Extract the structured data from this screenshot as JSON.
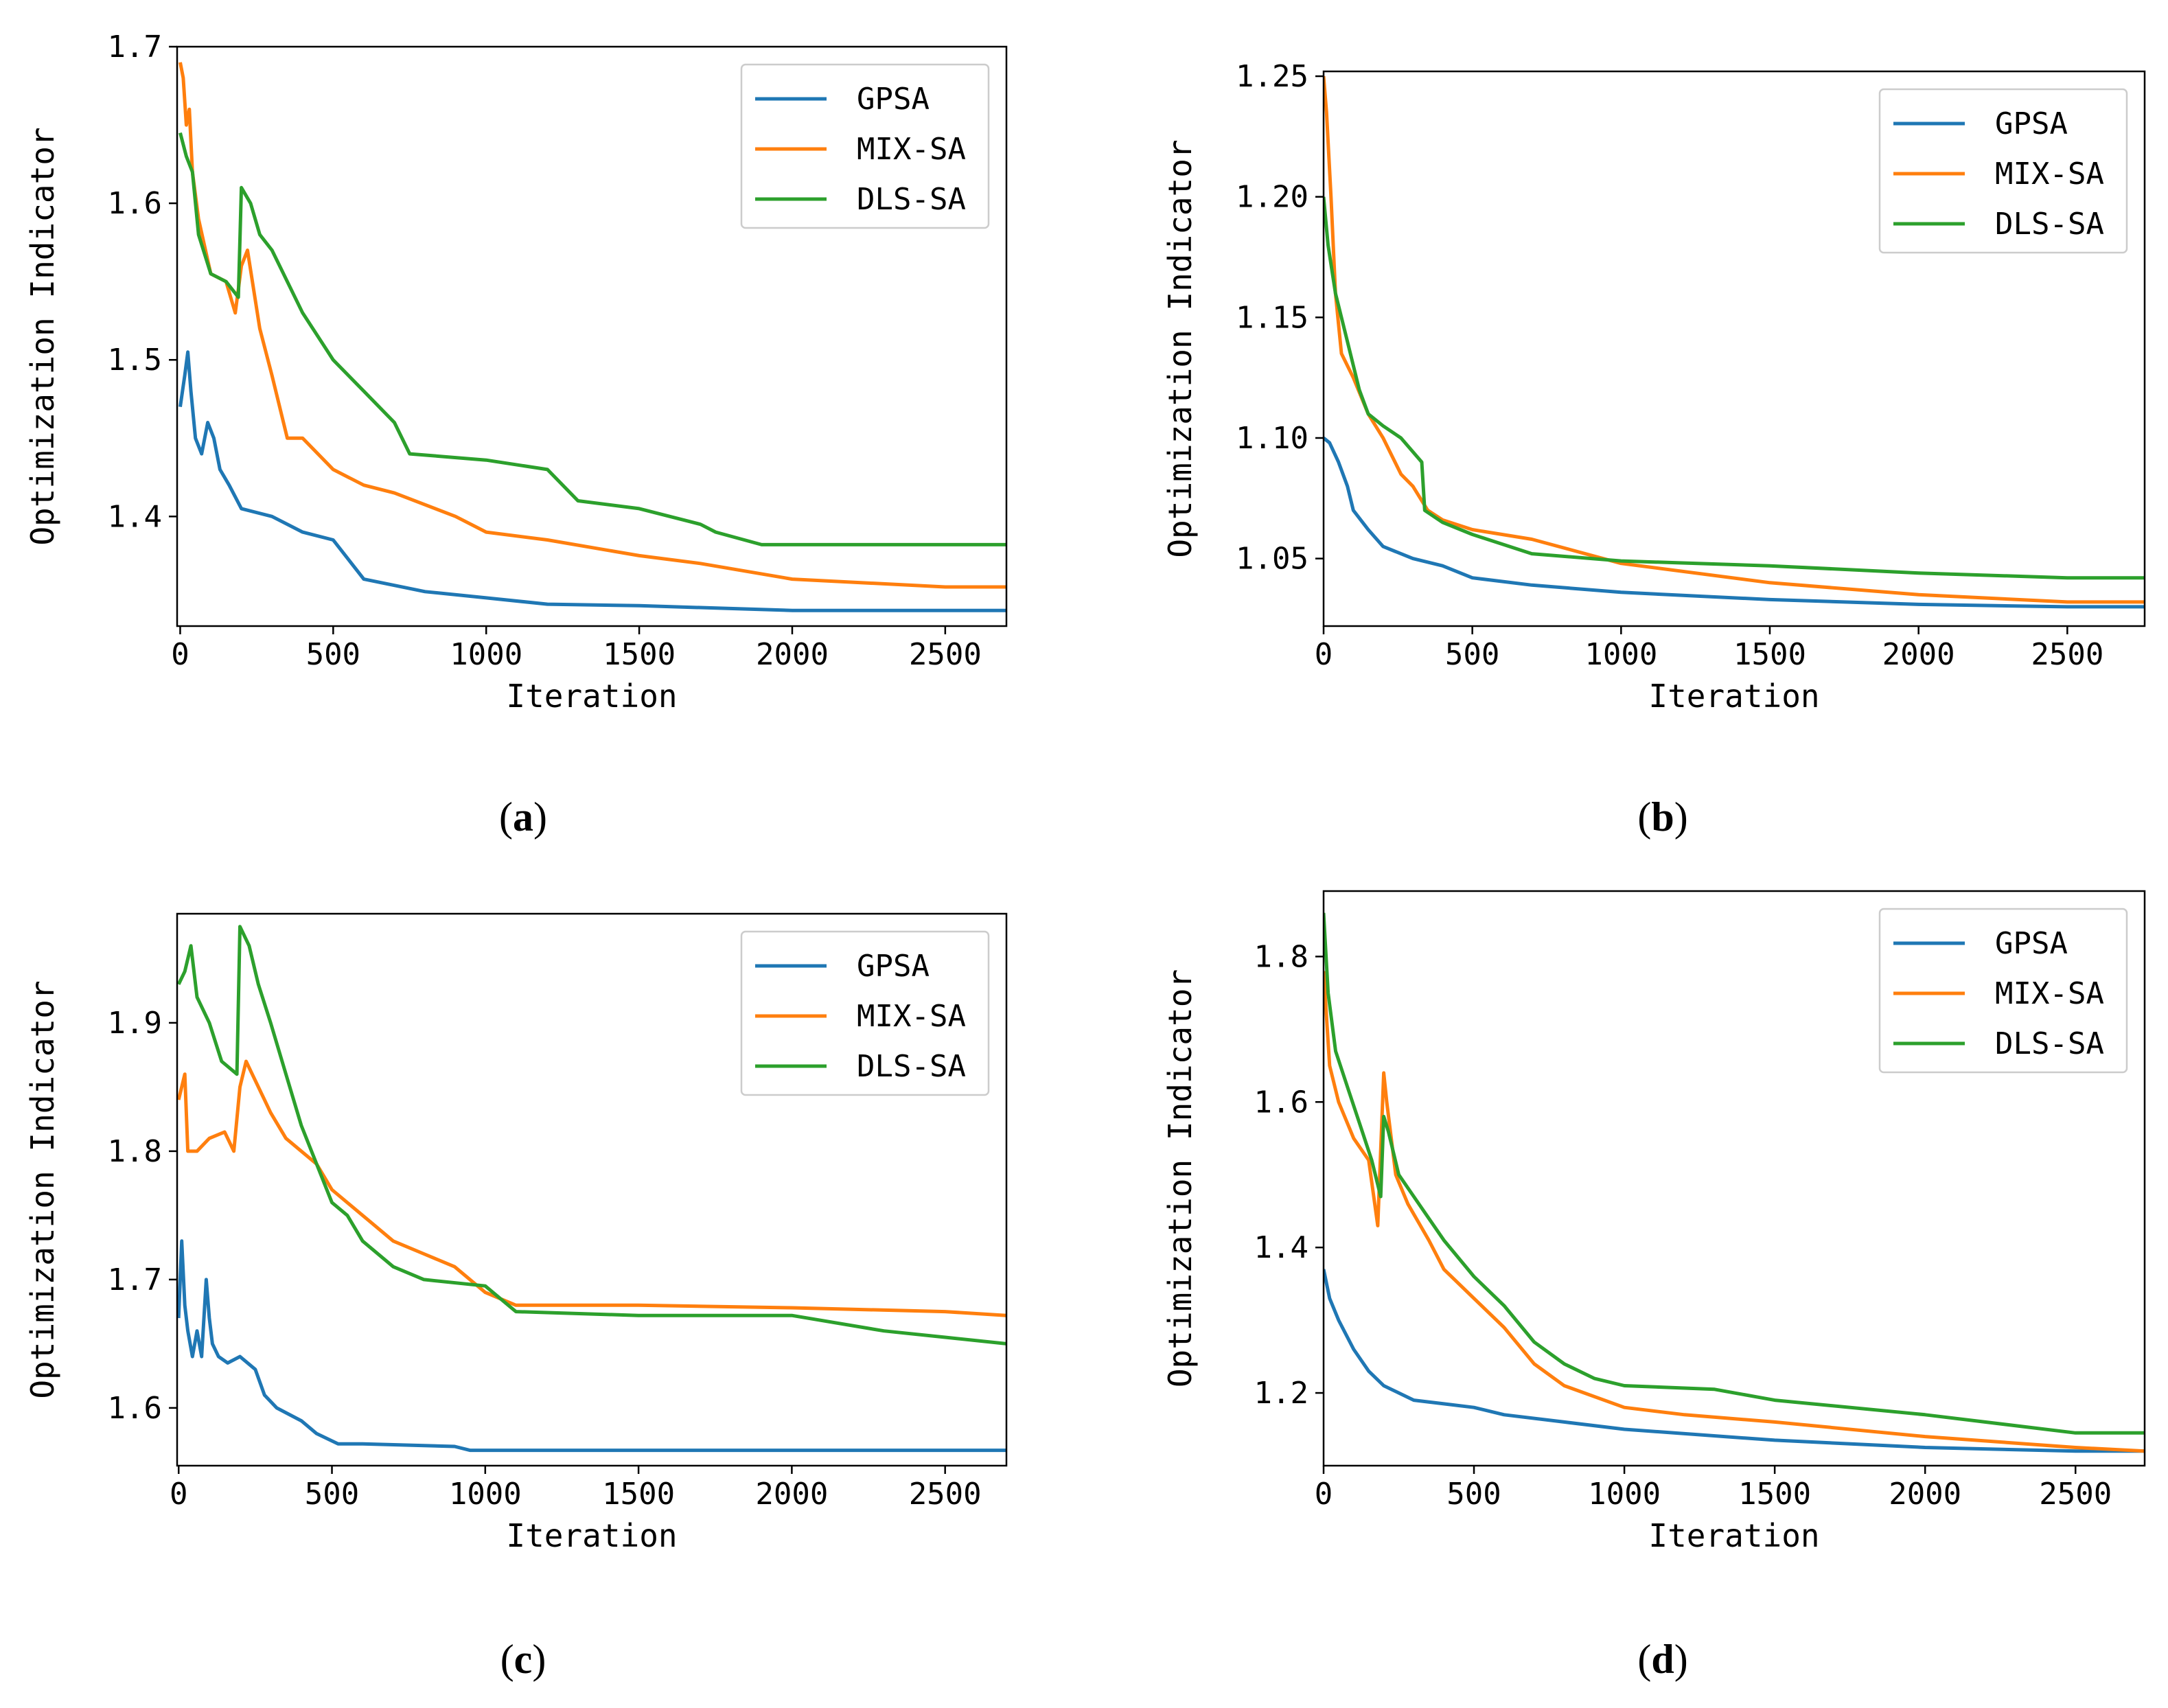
{
  "figure": {
    "colors": {
      "GPSA": "#1f77b4",
      "MIX-SA": "#ff7f0e",
      "DLS-SA": "#2ca02c"
    }
  },
  "chart_data": [
    {
      "type": "line",
      "caption": "(a)",
      "caption_open": "(",
      "caption_letter": "a",
      "caption_close": ")",
      "xlabel": "Iteration",
      "ylabel": "Optimization Indicator",
      "xlim": [
        -10,
        2700
      ],
      "ylim": [
        1.33,
        1.7
      ],
      "xticks": [
        0,
        500,
        1000,
        1500,
        2000,
        2500
      ],
      "xtick_labels": [
        "0",
        "500",
        "1000",
        "1500",
        "2000",
        "2500"
      ],
      "yticks": [
        1.4,
        1.5,
        1.6,
        1.7
      ],
      "ytick_labels": [
        "1.4",
        "1.5",
        "1.6",
        "1.7"
      ],
      "legend": [
        "GPSA",
        "MIX-SA",
        "DLS-SA"
      ],
      "legend_position": "top-right",
      "series": [
        {
          "name": "GPSA",
          "x": [
            0,
            15,
            25,
            35,
            50,
            70,
            90,
            110,
            130,
            160,
            200,
            300,
            400,
            500,
            600,
            800,
            1000,
            1200,
            1500,
            2000,
            2500,
            2700
          ],
          "y": [
            1.47,
            1.49,
            1.505,
            1.48,
            1.45,
            1.44,
            1.46,
            1.45,
            1.43,
            1.42,
            1.405,
            1.4,
            1.39,
            1.385,
            1.36,
            1.352,
            1.348,
            1.344,
            1.343,
            1.34,
            1.34,
            1.34
          ]
        },
        {
          "name": "MIX-SA",
          "x": [
            0,
            10,
            20,
            30,
            40,
            60,
            100,
            150,
            180,
            200,
            220,
            260,
            300,
            350,
            400,
            500,
            600,
            700,
            900,
            1000,
            1200,
            1500,
            1700,
            2000,
            2500,
            2700
          ],
          "y": [
            1.69,
            1.68,
            1.65,
            1.66,
            1.62,
            1.59,
            1.555,
            1.55,
            1.53,
            1.56,
            1.57,
            1.52,
            1.49,
            1.45,
            1.45,
            1.43,
            1.42,
            1.415,
            1.4,
            1.39,
            1.385,
            1.375,
            1.37,
            1.36,
            1.355,
            1.355
          ]
        },
        {
          "name": "DLS-SA",
          "x": [
            0,
            20,
            40,
            60,
            100,
            150,
            190,
            200,
            230,
            260,
            300,
            400,
            500,
            600,
            700,
            750,
            1000,
            1200,
            1300,
            1500,
            1700,
            1750,
            1900,
            2500,
            2700
          ],
          "y": [
            1.645,
            1.63,
            1.62,
            1.58,
            1.555,
            1.55,
            1.54,
            1.61,
            1.6,
            1.58,
            1.57,
            1.53,
            1.5,
            1.48,
            1.46,
            1.44,
            1.436,
            1.43,
            1.41,
            1.405,
            1.395,
            1.39,
            1.382,
            1.382,
            1.382
          ]
        }
      ]
    },
    {
      "type": "line",
      "caption": "(b)",
      "caption_open": "(",
      "caption_letter": "b",
      "caption_close": ")",
      "xlabel": "Iteration",
      "ylabel": "Optimization Indicator",
      "xlim": [
        0,
        2760
      ],
      "ylim": [
        1.022,
        1.252
      ],
      "xticks": [
        0,
        500,
        1000,
        1500,
        2000,
        2500
      ],
      "xtick_labels": [
        "0",
        "500",
        "1000",
        "1500",
        "2000",
        "2500"
      ],
      "yticks": [
        1.05,
        1.1,
        1.15,
        1.2,
        1.25
      ],
      "ytick_labels": [
        "1.05",
        "1.10",
        "1.15",
        "1.20",
        "1.25"
      ],
      "legend": [
        "GPSA",
        "MIX-SA",
        "DLS-SA"
      ],
      "legend_position": "top-right",
      "series": [
        {
          "name": "GPSA",
          "x": [
            0,
            20,
            50,
            80,
            100,
            150,
            200,
            300,
            400,
            500,
            700,
            1000,
            1500,
            2000,
            2500,
            2760
          ],
          "y": [
            1.1,
            1.098,
            1.09,
            1.08,
            1.07,
            1.062,
            1.055,
            1.05,
            1.047,
            1.042,
            1.039,
            1.036,
            1.033,
            1.031,
            1.03,
            1.03
          ]
        },
        {
          "name": "MIX-SA",
          "x": [
            0,
            10,
            25,
            40,
            60,
            100,
            150,
            200,
            260,
            300,
            350,
            400,
            500,
            700,
            1000,
            1500,
            2000,
            2500,
            2760
          ],
          "y": [
            1.25,
            1.235,
            1.2,
            1.16,
            1.135,
            1.125,
            1.11,
            1.1,
            1.085,
            1.08,
            1.07,
            1.066,
            1.062,
            1.058,
            1.048,
            1.04,
            1.035,
            1.032,
            1.032
          ]
        },
        {
          "name": "DLS-SA",
          "x": [
            0,
            15,
            40,
            80,
            120,
            150,
            200,
            260,
            330,
            340,
            400,
            500,
            700,
            1000,
            1500,
            2000,
            2500,
            2760
          ],
          "y": [
            1.2,
            1.18,
            1.16,
            1.14,
            1.12,
            1.11,
            1.105,
            1.1,
            1.09,
            1.07,
            1.065,
            1.06,
            1.052,
            1.049,
            1.047,
            1.044,
            1.042,
            1.042
          ]
        }
      ]
    },
    {
      "type": "line",
      "caption": "(c)",
      "caption_open": "(",
      "caption_letter": "c",
      "caption_close": ")",
      "xlabel": "Iteration",
      "ylabel": "Optimization Indicator",
      "xlim": [
        -5,
        2700
      ],
      "ylim": [
        1.555,
        1.985
      ],
      "xticks": [
        0,
        500,
        1000,
        1500,
        2000,
        2500
      ],
      "xtick_labels": [
        "0",
        "500",
        "1000",
        "1500",
        "2000",
        "2500"
      ],
      "yticks": [
        1.6,
        1.7,
        1.8,
        1.9
      ],
      "ytick_labels": [
        "1.6",
        "1.7",
        "1.8",
        "1.9"
      ],
      "legend": [
        "GPSA",
        "MIX-SA",
        "DLS-SA"
      ],
      "legend_position": "top-right",
      "series": [
        {
          "name": "GPSA",
          "x": [
            0,
            10,
            20,
            30,
            45,
            60,
            75,
            90,
            100,
            110,
            130,
            160,
            200,
            250,
            280,
            320,
            400,
            450,
            520,
            600,
            900,
            950,
            2000,
            2700
          ],
          "y": [
            1.67,
            1.73,
            1.68,
            1.66,
            1.64,
            1.66,
            1.64,
            1.7,
            1.67,
            1.65,
            1.64,
            1.635,
            1.64,
            1.63,
            1.61,
            1.6,
            1.59,
            1.58,
            1.572,
            1.572,
            1.57,
            1.567,
            1.567,
            1.567
          ]
        },
        {
          "name": "MIX-SA",
          "x": [
            0,
            20,
            30,
            60,
            100,
            150,
            180,
            200,
            220,
            240,
            280,
            300,
            350,
            400,
            450,
            500,
            600,
            700,
            800,
            900,
            1000,
            1100,
            1500,
            2000,
            2500,
            2700
          ],
          "y": [
            1.84,
            1.86,
            1.8,
            1.8,
            1.81,
            1.815,
            1.8,
            1.85,
            1.87,
            1.86,
            1.84,
            1.83,
            1.81,
            1.8,
            1.79,
            1.77,
            1.75,
            1.73,
            1.72,
            1.71,
            1.69,
            1.68,
            1.68,
            1.678,
            1.675,
            1.672
          ]
        },
        {
          "name": "DLS-SA",
          "x": [
            0,
            20,
            40,
            60,
            100,
            140,
            190,
            200,
            230,
            260,
            300,
            350,
            400,
            450,
            500,
            550,
            600,
            700,
            800,
            1000,
            1100,
            1500,
            2000,
            2300,
            2500,
            2700
          ],
          "y": [
            1.93,
            1.94,
            1.96,
            1.92,
            1.9,
            1.87,
            1.86,
            1.975,
            1.96,
            1.93,
            1.9,
            1.86,
            1.82,
            1.79,
            1.76,
            1.75,
            1.73,
            1.71,
            1.7,
            1.695,
            1.675,
            1.672,
            1.672,
            1.66,
            1.655,
            1.65
          ]
        }
      ]
    },
    {
      "type": "line",
      "caption": "(d)",
      "caption_open": "(",
      "caption_letter": "d",
      "caption_close": ")",
      "xlabel": "Iteration",
      "ylabel": "Optimization Indicator",
      "xlim": [
        0,
        2730
      ],
      "ylim": [
        1.1,
        1.89
      ],
      "xticks": [
        0,
        500,
        1000,
        1500,
        2000,
        2500
      ],
      "xtick_labels": [
        "0",
        "500",
        "1000",
        "1500",
        "2000",
        "2500"
      ],
      "yticks": [
        1.2,
        1.4,
        1.6,
        1.8
      ],
      "ytick_labels": [
        "1.2",
        "1.4",
        "1.6",
        "1.8"
      ],
      "legend": [
        "GPSA",
        "MIX-SA",
        "DLS-SA"
      ],
      "legend_position": "top-right",
      "series": [
        {
          "name": "GPSA",
          "x": [
            0,
            20,
            50,
            100,
            150,
            200,
            300,
            400,
            500,
            600,
            800,
            1000,
            1500,
            2000,
            2500,
            2730
          ],
          "y": [
            1.37,
            1.33,
            1.3,
            1.26,
            1.23,
            1.21,
            1.19,
            1.185,
            1.18,
            1.17,
            1.16,
            1.15,
            1.135,
            1.125,
            1.12,
            1.12
          ]
        },
        {
          "name": "MIX-SA",
          "x": [
            0,
            20,
            50,
            100,
            150,
            180,
            200,
            210,
            240,
            280,
            350,
            400,
            500,
            600,
            700,
            800,
            1000,
            1200,
            1500,
            2000,
            2500,
            2730
          ],
          "y": [
            1.78,
            1.65,
            1.6,
            1.55,
            1.52,
            1.43,
            1.64,
            1.6,
            1.5,
            1.46,
            1.41,
            1.37,
            1.33,
            1.29,
            1.24,
            1.21,
            1.18,
            1.17,
            1.16,
            1.14,
            1.125,
            1.12
          ]
        },
        {
          "name": "DLS-SA",
          "x": [
            0,
            15,
            40,
            80,
            120,
            160,
            190,
            200,
            215,
            250,
            300,
            400,
            500,
            600,
            700,
            800,
            900,
            1000,
            1300,
            1500,
            2000,
            2500,
            2730
          ],
          "y": [
            1.86,
            1.75,
            1.67,
            1.62,
            1.57,
            1.52,
            1.47,
            1.58,
            1.56,
            1.5,
            1.47,
            1.41,
            1.36,
            1.32,
            1.27,
            1.24,
            1.22,
            1.21,
            1.205,
            1.19,
            1.17,
            1.145,
            1.145
          ]
        }
      ]
    }
  ]
}
